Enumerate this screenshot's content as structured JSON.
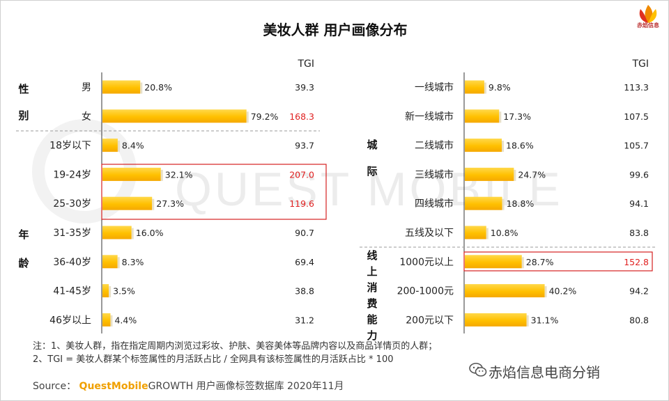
{
  "title": "美妆人群 用户画像分布",
  "logo_text": "赤焰信息",
  "watermark": "QUEST MOBILE",
  "tgi_header": "TGI",
  "left_groups": [
    {
      "label": "性\n别",
      "chars": [
        "性",
        "别"
      ]
    },
    {
      "label": "年\n龄",
      "chars": [
        "年",
        "龄"
      ]
    }
  ],
  "right_groups": [
    {
      "chars": [
        "城",
        "际"
      ]
    },
    {
      "chars": [
        "线",
        "上",
        "消",
        "费",
        "能",
        "力"
      ]
    }
  ],
  "chart_data": [
    {
      "type": "bar",
      "orientation": "horizontal",
      "categories": [
        "男",
        "女",
        "18岁以下",
        "19-24岁",
        "25-30岁",
        "31-35岁",
        "36-40岁",
        "41-45岁",
        "46岁以上"
      ],
      "values": [
        20.8,
        79.2,
        8.4,
        32.1,
        27.3,
        16.0,
        8.3,
        3.5,
        4.4
      ],
      "value_labels": [
        "20.8%",
        "79.2%",
        "8.4%",
        "32.1%",
        "27.3%",
        "16.0%",
        "8.3%",
        "3.5%",
        "4.4%"
      ],
      "tgi": [
        "39.3",
        "168.3",
        "93.7",
        "207.0",
        "119.6",
        "90.7",
        "69.4",
        "38.8",
        "31.2"
      ],
      "tgi_highlight": [
        false,
        true,
        false,
        true,
        true,
        false,
        false,
        false,
        false
      ],
      "xlim": [
        0,
        100
      ],
      "bar_color": "#ffc000"
    },
    {
      "type": "bar",
      "orientation": "horizontal",
      "categories": [
        "一线城市",
        "新一线城市",
        "二线城市",
        "三线城市",
        "四线城市",
        "五线及以下",
        "1000元以上",
        "200-1000元",
        "200元以下"
      ],
      "values": [
        9.8,
        17.3,
        18.6,
        24.7,
        18.8,
        10.8,
        28.7,
        40.2,
        31.1
      ],
      "value_labels": [
        "9.8%",
        "17.3%",
        "18.6%",
        "24.7%",
        "18.8%",
        "10.8%",
        "28.7%",
        "40.2%",
        "31.1%"
      ],
      "tgi": [
        "113.3",
        "107.5",
        "105.7",
        "99.6",
        "94.1",
        "83.8",
        "152.8",
        "94.2",
        "80.8"
      ],
      "tgi_highlight": [
        false,
        false,
        false,
        false,
        false,
        false,
        true,
        false,
        false
      ],
      "xlim": [
        0,
        100
      ],
      "bar_color": "#ffc000"
    }
  ],
  "notes": [
    "注：1、美妆人群，指在指定周期内浏览过彩妆、护肤、美容美体等品牌内容以及商品详情页的人群；",
    "2、TGI = 美妆人群某个标签属性的月活跃占比 / 全网具有该标签属性的月活跃占比 * 100"
  ],
  "source": {
    "prefix": "Source：",
    "brand": "QuestMobile",
    "rest": "GROWTH 用户画像标签数据库 2020年11月"
  },
  "brand_text": "赤焰信息电商分销",
  "colors": {
    "bar": "#ffc000",
    "highlight": "#e02020",
    "box": "#d62020"
  }
}
